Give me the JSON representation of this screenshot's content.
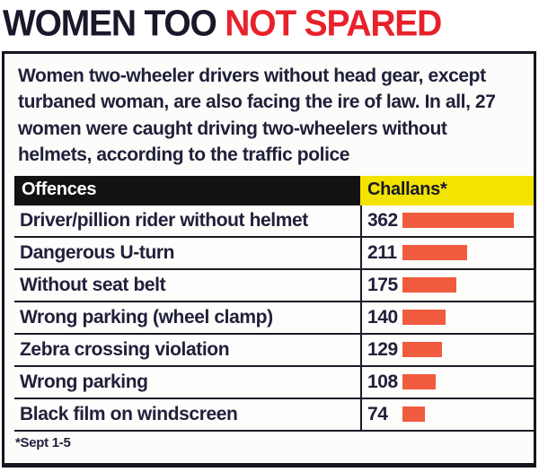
{
  "title": {
    "black": "WOMEN TOO ",
    "red": "NOT SPARED"
  },
  "intro": "Women two-wheeler drivers without head gear, except turbaned woman, are also facing the ire of law. In all, 27 women were caught driving two-wheelers without helmets, according to the traffic police",
  "table": {
    "headers": [
      "Offences",
      "Challans*"
    ],
    "rows": [
      {
        "label": "Driver/pillion rider without helmet",
        "value": "362"
      },
      {
        "label": "Dangerous U-turn",
        "value": "211"
      },
      {
        "label": "Without seat belt",
        "value": "175"
      },
      {
        "label": "Wrong parking (wheel clamp)",
        "value": "140"
      },
      {
        "label": "Zebra crossing violation",
        "value": "129"
      },
      {
        "label": "Wrong parking",
        "value": "108"
      },
      {
        "label": "Black film on windscreen",
        "value": "74"
      }
    ]
  },
  "footnote": "*Sept 1-5",
  "colors": {
    "title_navy": "#18182a",
    "title_red": "#e8212b",
    "text_navy": "#20203a",
    "header_black": "#121212",
    "header_yellow": "#f3e300",
    "bar_orange": "#f15b3e",
    "border_dark": "#15151f"
  },
  "chart_data": {
    "type": "bar",
    "categories": [
      "Driver/pillion rider without helmet",
      "Dangerous U-turn",
      "Without seat belt",
      "Wrong parking (wheel clamp)",
      "Zebra crossing violation",
      "Wrong parking",
      "Black film on windscreen"
    ],
    "values": [
      362,
      211,
      175,
      140,
      129,
      108,
      74
    ],
    "title": "WOMEN TOO NOT SPARED",
    "xlabel": "Challans*",
    "ylabel": "Offences",
    "annotations": [
      "*Sept 1-5"
    ],
    "legend_position": "none",
    "grid": false,
    "bar_orientation": "horizontal",
    "xlim": [
      0,
      362
    ]
  }
}
